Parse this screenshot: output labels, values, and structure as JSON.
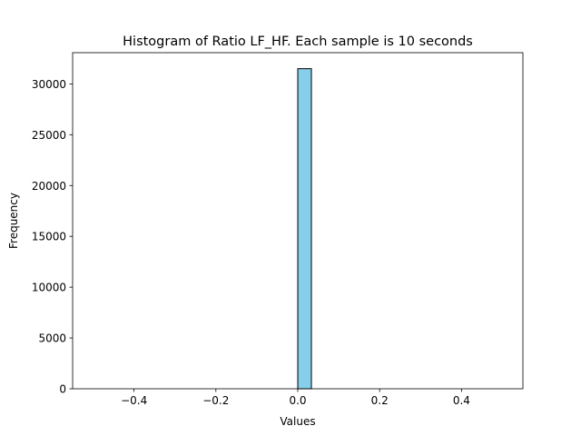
{
  "chart_data": {
    "type": "bar",
    "title": "Histogram of Ratio LF_HF. Each sample is 10 seconds",
    "xlabel": "Values",
    "ylabel": "Frequency",
    "xlim": [
      -0.55,
      0.55
    ],
    "ylim": [
      0,
      33075
    ],
    "bins": 30,
    "bin_range": [
      -0.5,
      0.5
    ],
    "counts": [
      0,
      0,
      0,
      0,
      0,
      0,
      0,
      0,
      0,
      0,
      0,
      0,
      0,
      0,
      0,
      31500,
      0,
      0,
      0,
      0,
      0,
      0,
      0,
      0,
      0,
      0,
      0,
      0,
      0,
      0
    ],
    "xticks": [
      -0.4,
      -0.2,
      0.0,
      0.2,
      0.4
    ],
    "xtick_labels": [
      "−0.4",
      "−0.2",
      "0.0",
      "0.2",
      "0.4"
    ],
    "yticks": [
      0,
      5000,
      10000,
      15000,
      20000,
      25000,
      30000
    ],
    "ytick_labels": [
      "0",
      "5000",
      "10000",
      "15000",
      "20000",
      "25000",
      "30000"
    ],
    "bar_color": "#87ceeb",
    "edge_color": "#000000",
    "grid": false,
    "legend": false
  }
}
